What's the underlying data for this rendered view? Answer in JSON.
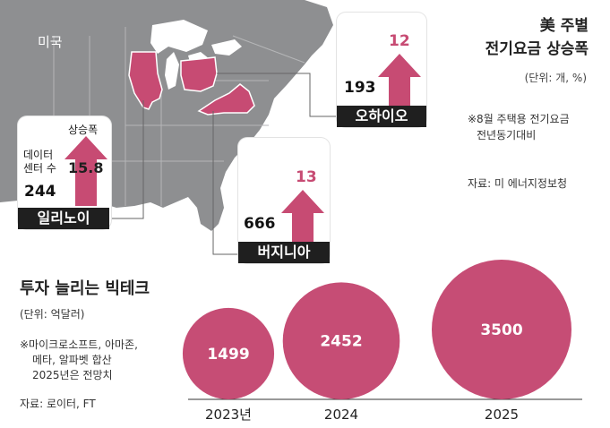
{
  "map": {
    "country_label": "미국",
    "states": [
      {
        "name": "일리노이",
        "data_center_count": 244,
        "increase": 15.8
      },
      {
        "name": "오하이오",
        "data_center_count": 193,
        "increase": 12
      },
      {
        "name": "버지니아",
        "data_center_count": 666,
        "increase": 13
      }
    ],
    "illinois_caption": "상승폭",
    "illinois_count_caption": "데이터\n센터 수",
    "highlight_color": "#c74b73"
  },
  "top_right": {
    "title_line1": "美 주별",
    "title_line2": "전기요금 상승폭",
    "unit": "(단위: 개, %)",
    "note_line1": "※8월 주택용 전기요금",
    "note_line2": "전년동기대비",
    "source": "자료: 미 에너지정보청"
  },
  "bottom": {
    "title": "투자 늘리는 빅테크",
    "unit": "(단위: 억달러)",
    "note_line1": "※마이크로소프트, 아마존,",
    "note_line2": "메타, 알파벳 합산",
    "note_line3": "2025년은 전망치",
    "source": "자료: 로이터, FT"
  },
  "chart_data": [
    {
      "type": "bar",
      "categories": [
        "일리노이",
        "오하이오",
        "버지니아"
      ],
      "series": [
        {
          "name": "데이터 센터 수",
          "values": [
            244,
            193,
            666
          ]
        },
        {
          "name": "상승폭",
          "values": [
            15.8,
            12,
            13
          ]
        }
      ],
      "title": "美 주별 전기요금 상승폭",
      "unit": "(단위: 개, %)"
    },
    {
      "type": "bubble",
      "title": "투자 늘리는 빅테크",
      "unit": "(단위: 억달러)",
      "categories": [
        "2023년",
        "2024",
        "2025"
      ],
      "values": [
        1499,
        2452,
        3500
      ],
      "color": "#c64d75"
    }
  ]
}
